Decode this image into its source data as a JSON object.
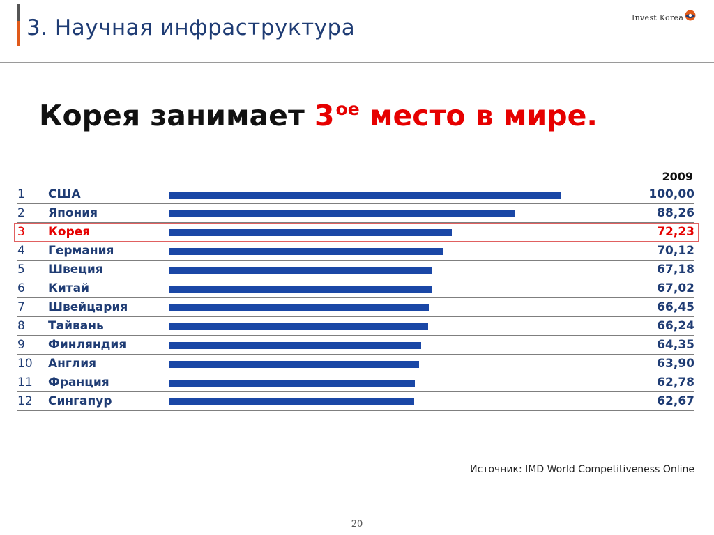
{
  "slide": {
    "title": "3. Научная инфраструктура",
    "logo_text": "Invest Korea",
    "page_number": "20"
  },
  "headline": {
    "part1": "Корея занимает ",
    "rank_num": "3",
    "rank_suffix": "ое",
    "part2": " место в мире."
  },
  "source": "Источник: IMD World Competitiveness Online",
  "colors": {
    "bar": "#1a47a6",
    "text": "#1f3c74",
    "highlight": "#e60000"
  },
  "chart_data": {
    "type": "bar",
    "orientation": "horizontal",
    "column_header": "2009",
    "max_value": 100,
    "highlight_index": 2,
    "rows": [
      {
        "rank": "1",
        "country": "США",
        "value": 100.0,
        "label": "100,00"
      },
      {
        "rank": "2",
        "country": "Япония",
        "value": 88.26,
        "label": "88,26"
      },
      {
        "rank": "3",
        "country": "Корея",
        "value": 72.23,
        "label": "72,23"
      },
      {
        "rank": "4",
        "country": "Германия",
        "value": 70.12,
        "label": "70,12"
      },
      {
        "rank": "5",
        "country": "Швеция",
        "value": 67.18,
        "label": "67,18"
      },
      {
        "rank": "6",
        "country": "Китай",
        "value": 67.02,
        "label": "67,02"
      },
      {
        "rank": "7",
        "country": "Швейцария",
        "value": 66.45,
        "label": "66,45"
      },
      {
        "rank": "8",
        "country": "Тайвань",
        "value": 66.24,
        "label": "66,24"
      },
      {
        "rank": "9",
        "country": "Финляндия",
        "value": 64.35,
        "label": "64,35"
      },
      {
        "rank": "10",
        "country": "Англия",
        "value": 63.9,
        "label": "63,90"
      },
      {
        "rank": "11",
        "country": "Франция",
        "value": 62.78,
        "label": "62,78"
      },
      {
        "rank": "12",
        "country": "Сингапур",
        "value": 62.67,
        "label": "62,67"
      }
    ]
  }
}
